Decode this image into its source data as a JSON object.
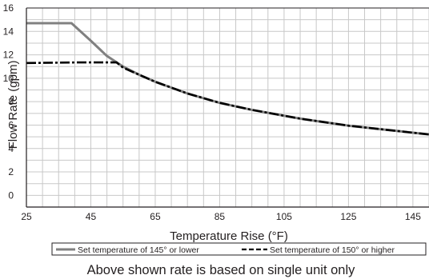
{
  "chart_data": {
    "type": "line",
    "xlabel": "Temperature Rise (°F)",
    "ylabel": "Flow Rate (gpm)",
    "xlim": [
      25,
      150
    ],
    "ylim": [
      -1,
      16
    ],
    "x_ticks": [
      25,
      45,
      65,
      85,
      105,
      125,
      145
    ],
    "y_ticks": [
      0,
      2,
      4,
      6,
      8,
      10,
      12,
      14,
      16
    ],
    "x_grid_step": 5,
    "y_grid_step": 1,
    "grid": true,
    "legend_position": "bottom",
    "series": [
      {
        "name": "Set temperature of 145° or lower",
        "color": "#808080",
        "style": "solid",
        "points": [
          [
            25,
            14.7
          ],
          [
            39,
            14.7
          ],
          [
            45,
            13.2
          ],
          [
            50,
            11.9
          ],
          [
            55,
            11.0
          ],
          [
            60,
            10.3
          ],
          [
            65,
            9.7
          ],
          [
            70,
            9.2
          ],
          [
            75,
            8.7
          ],
          [
            80,
            8.3
          ],
          [
            85,
            7.9
          ],
          [
            90,
            7.6
          ],
          [
            95,
            7.3
          ],
          [
            100,
            7.05
          ],
          [
            105,
            6.8
          ],
          [
            110,
            6.55
          ],
          [
            115,
            6.35
          ],
          [
            120,
            6.15
          ],
          [
            125,
            5.95
          ],
          [
            130,
            5.8
          ],
          [
            135,
            5.65
          ],
          [
            140,
            5.5
          ],
          [
            145,
            5.35
          ],
          [
            150,
            5.2
          ]
        ]
      },
      {
        "name": "Set temperature of 150° or higher",
        "color": "#000000",
        "style": "dash-dot",
        "points": [
          [
            25,
            11.3
          ],
          [
            40,
            11.35
          ],
          [
            53,
            11.35
          ],
          [
            55,
            10.9
          ],
          [
            60,
            10.3
          ],
          [
            65,
            9.7
          ],
          [
            70,
            9.2
          ],
          [
            75,
            8.7
          ],
          [
            80,
            8.3
          ],
          [
            85,
            7.9
          ],
          [
            90,
            7.6
          ],
          [
            95,
            7.3
          ],
          [
            100,
            7.05
          ],
          [
            105,
            6.8
          ],
          [
            110,
            6.55
          ],
          [
            115,
            6.35
          ],
          [
            120,
            6.15
          ],
          [
            125,
            5.95
          ],
          [
            130,
            5.8
          ],
          [
            135,
            5.65
          ],
          [
            140,
            5.5
          ],
          [
            145,
            5.35
          ],
          [
            150,
            5.2
          ]
        ]
      }
    ],
    "footnote": "Above shown rate is based on single unit only"
  }
}
